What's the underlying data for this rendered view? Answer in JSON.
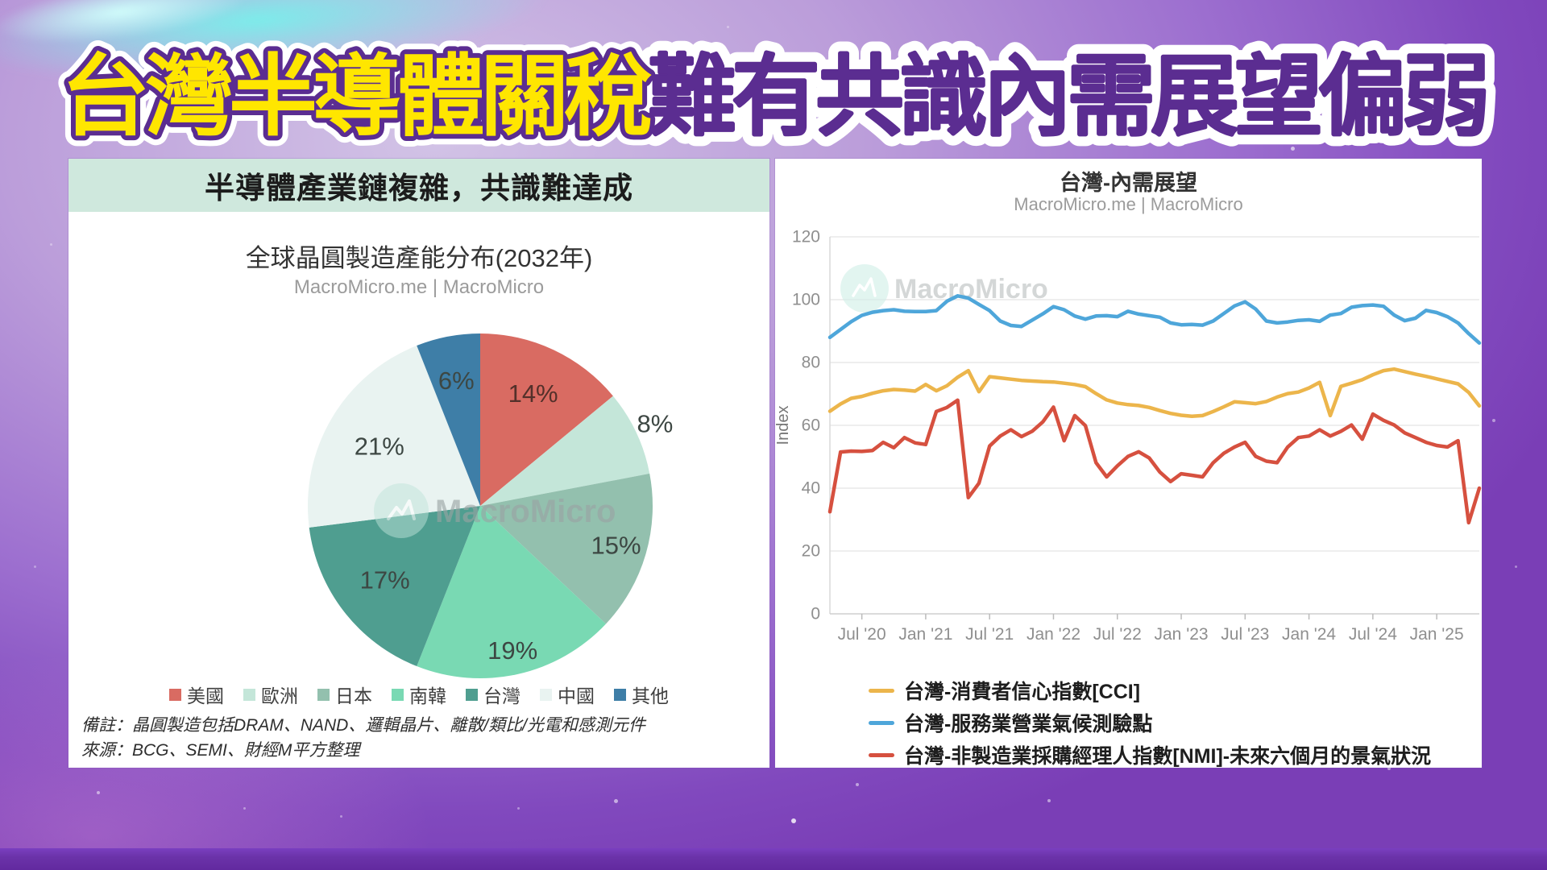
{
  "banner": {
    "part1": "台灣半導體關稅",
    "part2": "難有共識內需展望偏弱",
    "part1_fill": "#ffe600",
    "part1_stroke": "#5b2d91",
    "part2_fill": "#5b2d91",
    "outer_stroke": "#ffffff"
  },
  "left_panel": {
    "header": "半導體產業鏈複雜，共識難達成",
    "header_bg": "#cfe8dd",
    "source_line": "MacroMicro.me | MacroMicro",
    "watermark": "MacroMicro",
    "notes": [
      "備註：晶圓製造包括DRAM、NAND、邏輯晶片、離散/類比/光電和感測元件",
      "來源：BCG、SEMI、財經M平方整理"
    ]
  },
  "right_panel": {
    "source_line": "MacroMicro.me | MacroMicro",
    "watermark": "MacroMicro"
  },
  "chart_data": [
    {
      "type": "pie",
      "title": "全球晶圓製造產能分布(2032年)",
      "labels": [
        "美國",
        "歐洲",
        "日本",
        "南韓",
        "台灣",
        "中國",
        "其他"
      ],
      "values": [
        14,
        8,
        15,
        19,
        17,
        21,
        6
      ],
      "value_suffix": "%",
      "colors": [
        "#d96b62",
        "#c4e6d9",
        "#93c0ae",
        "#79d9b3",
        "#4f9e90",
        "#e9f3f1",
        "#3e7ea7"
      ],
      "start": "top",
      "direction": "clockwise",
      "legend_position": "bottom"
    },
    {
      "type": "line",
      "title": "台灣-內需展望",
      "ylabel": "Index",
      "ylim": [
        0,
        120
      ],
      "yticks": [
        0,
        20,
        40,
        60,
        80,
        100,
        120
      ],
      "grid": "horizontal",
      "legend_position": "bottom-left",
      "x_frequency": "monthly",
      "x_range": [
        "2020-04",
        "2025-05"
      ],
      "xtick_labels": [
        "Jul '20",
        "Jan '21",
        "Jul '21",
        "Jan '22",
        "Jul '22",
        "Jan '23",
        "Jul '23",
        "Jan '24",
        "Jul '24",
        "Jan '25"
      ],
      "xtick_indices": [
        3,
        9,
        15,
        21,
        27,
        33,
        39,
        45,
        51,
        57
      ],
      "series": [
        {
          "name": "台灣-消費者信心指數[CCI]",
          "color": "#ecb54b",
          "values": [
            64.5,
            66.8,
            68.6,
            69.2,
            70.2,
            71.0,
            71.4,
            71.2,
            70.9,
            73.0,
            71.0,
            72.6,
            75.3,
            77.4,
            70.7,
            75.5,
            75.1,
            74.7,
            74.3,
            74.1,
            73.9,
            73.8,
            73.4,
            73.0,
            72.3,
            70.1,
            68.1,
            67.1,
            66.6,
            66.3,
            65.7,
            64.7,
            63.8,
            63.2,
            62.9,
            63.1,
            64.4,
            65.9,
            67.5,
            67.2,
            66.9,
            67.6,
            69.0,
            70.1,
            70.6,
            71.9,
            73.7,
            63.1,
            72.4,
            73.4,
            74.5,
            76.1,
            77.4,
            77.9,
            77.1,
            76.3,
            75.6,
            74.8,
            74.0,
            73.2,
            70.5,
            66.2
          ]
        },
        {
          "name": "台灣-服務業營業氣候測驗點",
          "color": "#4ea6da",
          "values": [
            88.0,
            90.5,
            93.0,
            95.0,
            96.0,
            96.5,
            96.8,
            96.3,
            96.2,
            96.2,
            96.5,
            99.5,
            101.2,
            100.5,
            98.5,
            96.5,
            93.2,
            91.8,
            91.5,
            93.5,
            95.5,
            97.8,
            96.8,
            94.8,
            93.8,
            94.8,
            94.9,
            94.6,
            96.3,
            95.4,
            94.9,
            94.4,
            92.6,
            92.0,
            92.1,
            91.9,
            93.2,
            95.6,
            98.0,
            99.3,
            97.0,
            93.2,
            92.6,
            92.9,
            93.4,
            93.6,
            93.1,
            95.1,
            95.6,
            97.6,
            98.1,
            98.3,
            97.9,
            95.1,
            93.3,
            94.1,
            96.6,
            95.9,
            94.6,
            92.6,
            89.2,
            86.2
          ]
        },
        {
          "name": "台灣-非製造業採購經理人指數[NMI]-未來六個月的景氣狀況",
          "color": "#d6503f",
          "values": [
            32.5,
            51.5,
            51.8,
            51.7,
            52.0,
            54.6,
            52.9,
            56.1,
            54.4,
            53.9,
            64.4,
            65.7,
            68.0,
            37.0,
            41.6,
            53.4,
            56.6,
            58.6,
            56.4,
            58.1,
            61.1,
            65.8,
            55.1,
            63.1,
            59.9,
            48.1,
            43.6,
            47.1,
            50.1,
            51.6,
            49.6,
            45.1,
            42.1,
            44.6,
            44.1,
            43.6,
            48.1,
            51.1,
            53.1,
            54.6,
            50.1,
            48.6,
            48.1,
            53.1,
            56.1,
            56.6,
            58.6,
            56.6,
            58.1,
            60.1,
            55.6,
            63.6,
            61.6,
            60.1,
            57.6,
            56.1,
            54.6,
            53.6,
            53.1,
            55.1,
            29.0,
            40.0
          ]
        }
      ]
    }
  ]
}
